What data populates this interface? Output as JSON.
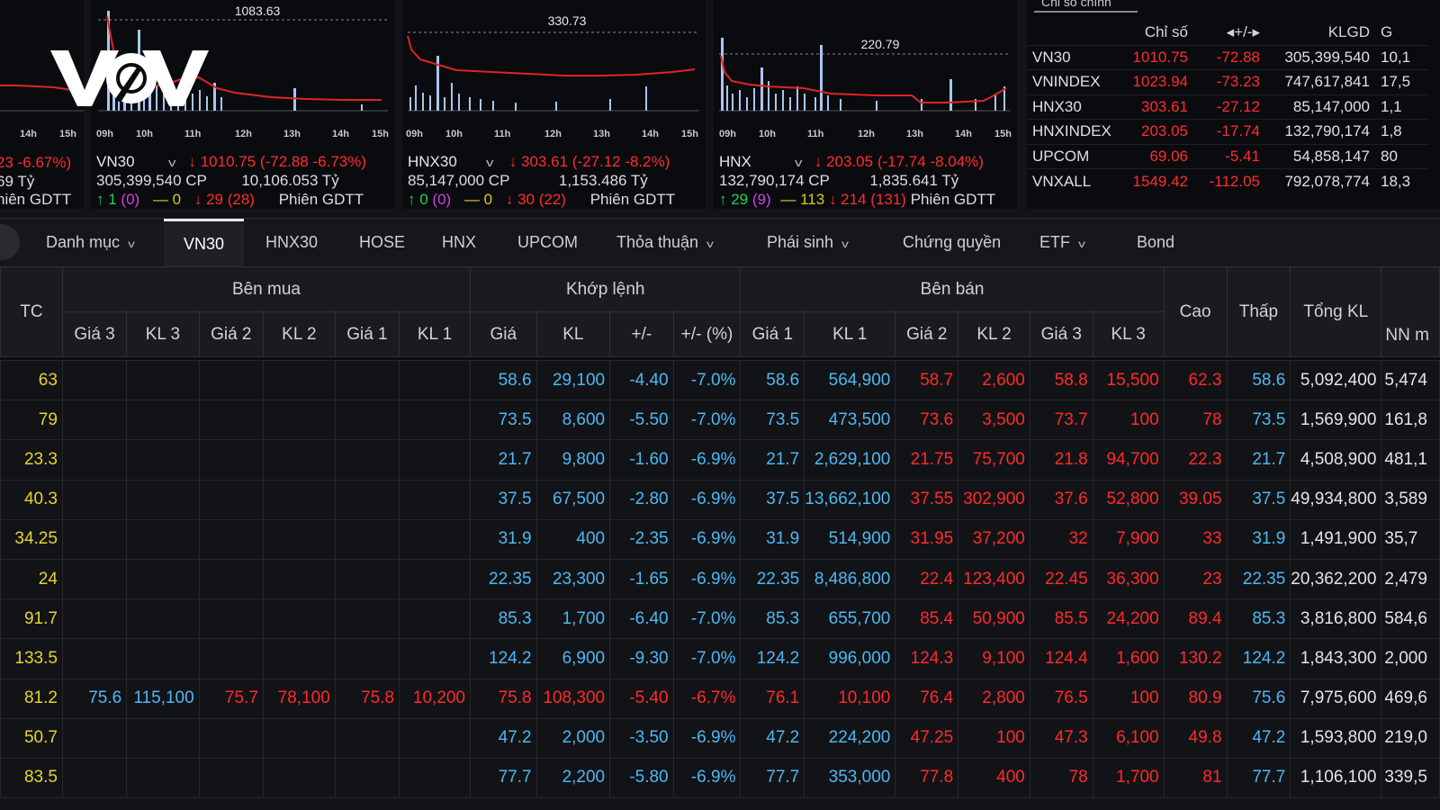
{
  "brand": {
    "logo_text": "VOV"
  },
  "colors": {
    "up": "#19d35c",
    "down": "#ff2d2d",
    "ref": "#e6d32e",
    "floor": "#4db8f2",
    "bg": "#121317"
  },
  "panels": [
    {
      "hours": [
        "14h",
        "15h"
      ],
      "info": {
        "change": "23 -6.67%)",
        "line2": "69 Tỷ",
        "line3": "hiên GDTT"
      }
    },
    {
      "peak_label": "1083.63",
      "hours": [
        "09h",
        "10h",
        "11h",
        "12h",
        "13h",
        "14h",
        "15h"
      ],
      "info": {
        "name": "VN30",
        "value": "↓ 1010.75",
        "change": "(-72.88 -6.73%)",
        "volume": "305,399,540 CP",
        "turnover": "10,106.053 Tỷ",
        "up": "↑ 1",
        "up_ceil": "(0)",
        "flat": "— 0",
        "down": "↓ 29",
        "down_floor": "(28)",
        "session": "Phiên GDTT"
      }
    },
    {
      "peak_label": "330.73",
      "hours": [
        "09h",
        "10h",
        "11h",
        "12h",
        "13h",
        "14h",
        "15h"
      ],
      "info": {
        "name": "HNX30",
        "value": "↓ 303.61",
        "change": "(-27.12 -8.2%)",
        "volume": "85,147,000 CP",
        "turnover": "1,153.486 Tỷ",
        "up": "↑ 0",
        "up_ceil": "(0)",
        "flat": "— 0",
        "down": "↓ 30",
        "down_floor": "(22)",
        "session": "Phiên GDTT"
      }
    },
    {
      "peak_label": "220.79",
      "hours": [
        "09h",
        "10h",
        "11h",
        "12h",
        "13h",
        "14h",
        "15h"
      ],
      "info": {
        "name": "HNX",
        "value": "↓ 203.05",
        "change": "(-17.74 -8.04%)",
        "volume": "132,790,174 CP",
        "turnover": "1,835.641 Tỷ",
        "up": "↑ 29",
        "up_ceil": "(9)",
        "flat": "— 113",
        "down": "↓ 214",
        "down_floor": "(131)",
        "session": "Phiên GDTT"
      }
    }
  ],
  "index_table": {
    "tab_label": "Chỉ số chính",
    "headers": [
      "",
      "Chỉ số",
      "◂+/-▸",
      "KLGD",
      "G"
    ],
    "rows": [
      [
        "VN30",
        "1010.75",
        "-72.88",
        "305,399,540",
        "10,1"
      ],
      [
        "VNINDEX",
        "1023.94",
        "-73.23",
        "747,617,841",
        "17,5"
      ],
      [
        "HNX30",
        "303.61",
        "-27.12",
        "85,147,000",
        "1,1"
      ],
      [
        "HNXINDEX",
        "203.05",
        "-17.74",
        "132,790,174",
        "1,8"
      ],
      [
        "UPCOM",
        "69.06",
        "-5.41",
        "54,858,147",
        "80"
      ],
      [
        "VNXALL",
        "1549.42",
        "-112.05",
        "792,078,774",
        "18,3"
      ]
    ]
  },
  "nav": {
    "items": [
      "Danh mục",
      "VN30",
      "HNX30",
      "HOSE",
      "HNX",
      "UPCOM",
      "Thỏa thuận",
      "Phái sinh",
      "Chứng quyền",
      "ETF",
      "Bond"
    ],
    "active": "VN30"
  },
  "board": {
    "group_headers": {
      "tc": "TC",
      "buy": "Bên mua",
      "match": "Khớp lệnh",
      "sell": "Bên bán",
      "high": "Cao",
      "low": "Thấp",
      "total": "Tổng KL",
      "foreign": "NN m"
    },
    "sub_headers": [
      "Giá 3",
      "KL 3",
      "Giá 2",
      "KL 2",
      "Giá 1",
      "KL 1",
      "Giá",
      "KL",
      "+/-",
      "+/- (%)",
      "Giá 1",
      "KL 1",
      "Giá 2",
      "KL 2",
      "Giá 3",
      "KL 3"
    ],
    "rows": [
      [
        "63",
        "",
        "",
        "",
        "",
        "",
        "",
        "58.6",
        "29,100",
        "-4.40",
        "-7.0%",
        "58.6",
        "564,900",
        "58.7",
        "2,600",
        "58.8",
        "15,500",
        "62.3",
        "58.6",
        "5,092,400",
        "5,474"
      ],
      [
        "79",
        "",
        "",
        "",
        "",
        "",
        "",
        "73.5",
        "8,600",
        "-5.50",
        "-7.0%",
        "73.5",
        "473,500",
        "73.6",
        "3,500",
        "73.7",
        "100",
        "78",
        "73.5",
        "1,569,900",
        "161,8"
      ],
      [
        "23.3",
        "",
        "",
        "",
        "",
        "",
        "",
        "21.7",
        "9,800",
        "-1.60",
        "-6.9%",
        "21.7",
        "2,629,100",
        "21.75",
        "75,700",
        "21.8",
        "94,700",
        "22.3",
        "21.7",
        "4,508,900",
        "481,1"
      ],
      [
        "40.3",
        "",
        "",
        "",
        "",
        "",
        "",
        "37.5",
        "67,500",
        "-2.80",
        "-6.9%",
        "37.5",
        "13,662,100",
        "37.55",
        "302,900",
        "37.6",
        "52,800",
        "39.05",
        "37.5",
        "49,934,800",
        "3,589"
      ],
      [
        "34.25",
        "",
        "",
        "",
        "",
        "",
        "",
        "31.9",
        "400",
        "-2.35",
        "-6.9%",
        "31.9",
        "514,900",
        "31.95",
        "37,200",
        "32",
        "7,900",
        "33",
        "31.9",
        "1,491,900",
        "35,7"
      ],
      [
        "24",
        "",
        "",
        "",
        "",
        "",
        "",
        "22.35",
        "23,300",
        "-1.65",
        "-6.9%",
        "22.35",
        "8,486,800",
        "22.4",
        "123,400",
        "22.45",
        "36,300",
        "23",
        "22.35",
        "20,362,200",
        "2,479"
      ],
      [
        "91.7",
        "",
        "",
        "",
        "",
        "",
        "",
        "85.3",
        "1,700",
        "-6.40",
        "-7.0%",
        "85.3",
        "655,700",
        "85.4",
        "50,900",
        "85.5",
        "24,200",
        "89.4",
        "85.3",
        "3,816,800",
        "584,6"
      ],
      [
        "133.5",
        "",
        "",
        "",
        "",
        "",
        "",
        "124.2",
        "6,900",
        "-9.30",
        "-7.0%",
        "124.2",
        "996,000",
        "124.3",
        "9,100",
        "124.4",
        "1,600",
        "130.2",
        "124.2",
        "1,843,300",
        "2,000"
      ],
      [
        "81.2",
        "75.6",
        "115,100",
        "75.7",
        "78,100",
        "75.8",
        "10,200",
        "75.8",
        "108,300",
        "-5.40",
        "-6.7%",
        "76.1",
        "10,100",
        "76.4",
        "2,800",
        "76.5",
        "100",
        "80.9",
        "75.6",
        "7,975,600",
        "469,6"
      ],
      [
        "50.7",
        "",
        "",
        "",
        "",
        "",
        "",
        "47.2",
        "2,000",
        "-3.50",
        "-6.9%",
        "47.2",
        "224,200",
        "47.25",
        "100",
        "47.3",
        "6,100",
        "49.8",
        "47.2",
        "1,593,800",
        "219,0"
      ],
      [
        "83.5",
        "",
        "",
        "",
        "",
        "",
        "",
        "77.7",
        "2,200",
        "-5.80",
        "-6.9%",
        "77.7",
        "353,000",
        "77.8",
        "400",
        "78",
        "1,700",
        "81",
        "77.7",
        "1,106,100",
        "339,5"
      ]
    ]
  }
}
